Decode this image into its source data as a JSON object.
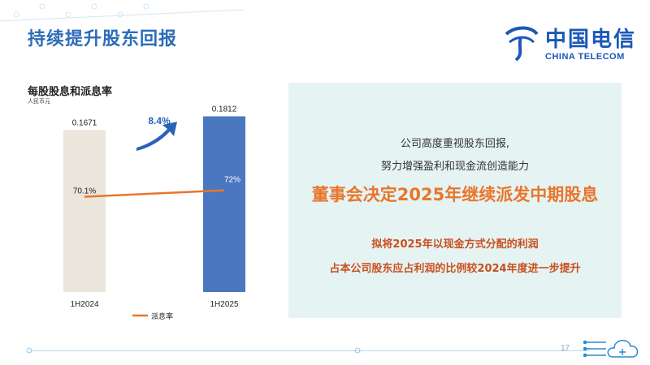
{
  "header": {
    "title": "持续提升股东回报",
    "logo_cn": "中国电信",
    "logo_en": "CHINA TELECOM"
  },
  "chart_title": "每股股息和派息率",
  "chart_unit": "人民币元",
  "chart_data": {
    "type": "bar",
    "categories": [
      "1H2024",
      "1H2025"
    ],
    "series": [
      {
        "values": [
          0.1671,
          0.1812
        ],
        "colors": [
          "#ebe6dc",
          "#4a77c0"
        ]
      },
      {
        "name": "派息率",
        "type": "line",
        "values": [
          70.1,
          72
        ],
        "unit": "%",
        "color": "#e8762b"
      }
    ],
    "value_labels": [
      "0.1671",
      "0.1812"
    ],
    "ratio_labels": [
      "70.1%",
      "72%"
    ],
    "growth_label": "8.4%",
    "legend": {
      "label": "派息率",
      "position": "bottom"
    }
  },
  "panel": {
    "line1": "公司高度重视股东回报,",
    "line2": "努力增强盈利和现金流创造能力",
    "headline": "董事会决定2025年继续派发中期股息",
    "line4": "拟将2025年以现金方式分配的利润",
    "line5": "占本公司股东应占利润的比例较2024年度进一步提升"
  },
  "footer": {
    "page": "17"
  }
}
